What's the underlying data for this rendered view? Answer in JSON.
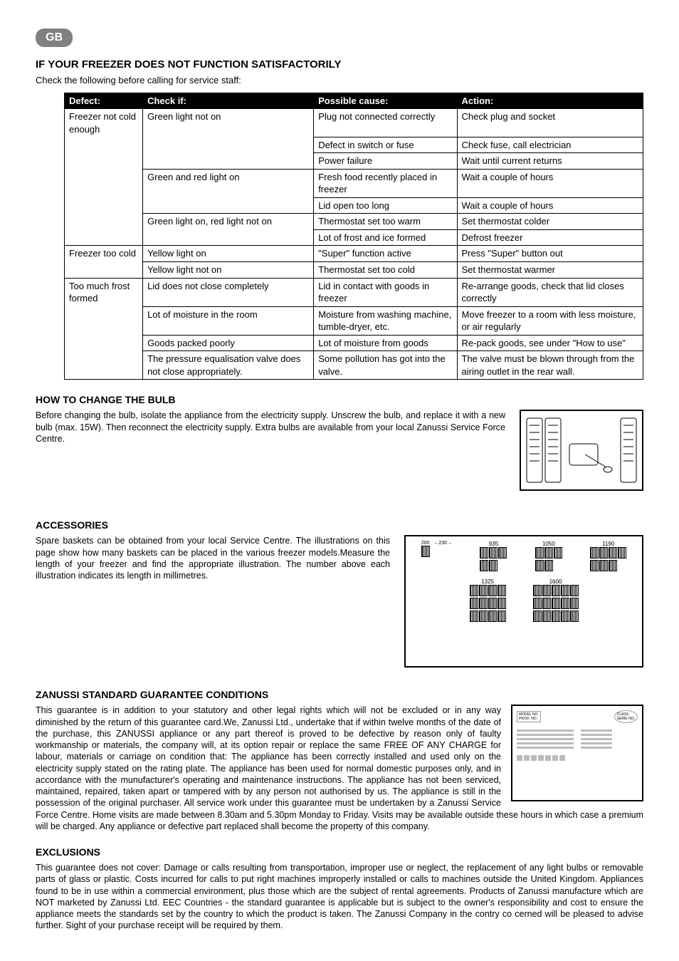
{
  "badge": "GB",
  "title_main": "IF YOUR FREEZER DOES NOT FUNCTION SATISFACTORILY",
  "intro": "Check the following before calling for service staff:",
  "table": {
    "headers": [
      "Defect:",
      "Check if:",
      "Possible cause:",
      "Action:"
    ],
    "rows": [
      [
        "Freezer not cold enough",
        "Green light not on",
        "Plug not connected correctly",
        "Check plug and socket"
      ],
      [
        "",
        "",
        "Defect in switch or fuse",
        "Check fuse, call electrician"
      ],
      [
        "",
        "",
        "Power failure",
        "Wait until current returns"
      ],
      [
        "",
        "Green and red light on",
        "Fresh food recently placed in freezer",
        "Wait a couple of hours"
      ],
      [
        "",
        "",
        "Lid open too long",
        "Wait a couple of hours"
      ],
      [
        "",
        "Green light on, red light not on",
        "Thermostat set too warm",
        "Set thermostat colder"
      ],
      [
        "",
        "",
        "Lot of frost and ice formed",
        "Defrost freezer"
      ],
      [
        "Freezer too cold",
        "Yellow light on",
        "\"Super\" function active",
        "Press \"Super\" button out"
      ],
      [
        "",
        "Yellow light not on",
        "Thermostat set too cold",
        "Set thermostat warmer"
      ],
      [
        "Too much frost formed",
        "Lid does not close completely",
        "Lid in contact with goods in freezer",
        "Re-arrange goods, check that lid closes correctly"
      ],
      [
        "",
        "Lot of moisture in the room",
        "Moisture from washing machine, tumble-dryer, etc.",
        "Move freezer to a room with less moisture, or air regularly"
      ],
      [
        "",
        "Goods packed poorly",
        "Lot of moisture from goods",
        "Re-pack goods, see under \"How to use\""
      ],
      [
        "",
        "The pressure equalisation valve does not close appropriately.",
        "Some pollution has got into the valve.",
        "The valve must be blown through from the airing outlet in the rear wall."
      ]
    ]
  },
  "bulb": {
    "heading": "HOW TO CHANGE THE BULB",
    "text": "Before changing the bulb, isolate the appliance from the electricity supply. Unscrew the bulb, and replace it with a new bulb (max. 15W). Then reconnect the electricity supply. Extra bulbs are available from your local Zanussi Service Force Centre."
  },
  "accessories": {
    "heading": "ACCESSORIES",
    "text": "Spare baskets can be obtained from your local Service Centre. The illustrations on this page show how many baskets can be placed in the various freezer models.Measure the length of your freezer and find the appropriate illustration. The number above each illustration indicates its length in millimetres.",
    "basket_dims": {
      "w": "230",
      "h": "200"
    },
    "lengths_top": [
      "935",
      "1050",
      "1190"
    ],
    "lengths_bottom": [
      "1325",
      "1600"
    ]
  },
  "guarantee": {
    "heading": "ZANUSSI STANDARD GUARANTEE CONDITIONS",
    "text": "This guarantee is in addition to your statutory and other legal rights which will not be excluded or in any way diminished by the return of this guarantee card.We, Zanussi Ltd., undertake that if within twelve months of the date of the purchase, this ZANUSSI appliance or any part thereof is proved to be defective by reason only of faulty workmanship or materials, the company will, at its option repair or replace the same FREE OF ANY CHARGE for labour, materials or carriage on condition that: The appliance has been correctly installed and used only on the electricity supply stated on the rating plate. The appliance has been used for normal domestic purposes only, and in accordance with the munufacturer's operating and maintenance instructions. The appliance has not been serviced, maintained, repaired, taken apart or tampered with by any person not authorised by us. The appliance is still in the possession of the original purchaser. All service work under this guarantee must be undertaken by a Zanussi Service Force Centre. Home visits are made between 8.30am and 5.30pm Monday to Friday. Visits may be available outside these hours in which case a premium will be charged. Any appliance or defective part replaced shall become the property of this company.",
    "card_labels": {
      "model": "MODEL NO.\nPROD. NO.",
      "serie": "CLASS\nSERIE NO."
    }
  },
  "exclusions": {
    "heading": "EXCLUSIONS",
    "text": "This guarantee does not cover: Damage or calls resulting from transportation, improper use or neglect, the replacement of any light bulbs or removable parts of glass or plastic. Costs incurred for calls to put right machines improperly installed or calls to machines outside the United Kingdom. Appliances found to be in use within a commercial environment, plus those which are the subject of rental agreements. Products of Zanussi manufacture which are NOT marketed by Zanussi Ltd. EEC Countries - the standard guarantee is applicable but is subject to the owner's responsibility and cost to ensure the appliance meets the standards set by the country to which the product is taken. The Zanussi Company in the contry co cerned will be pleased to advise further. Sight of your purchase receipt will be required by them."
  },
  "colors": {
    "header_bg": "#000000",
    "header_fg": "#ffffff",
    "badge_bg": "#808080",
    "border": "#000000"
  }
}
